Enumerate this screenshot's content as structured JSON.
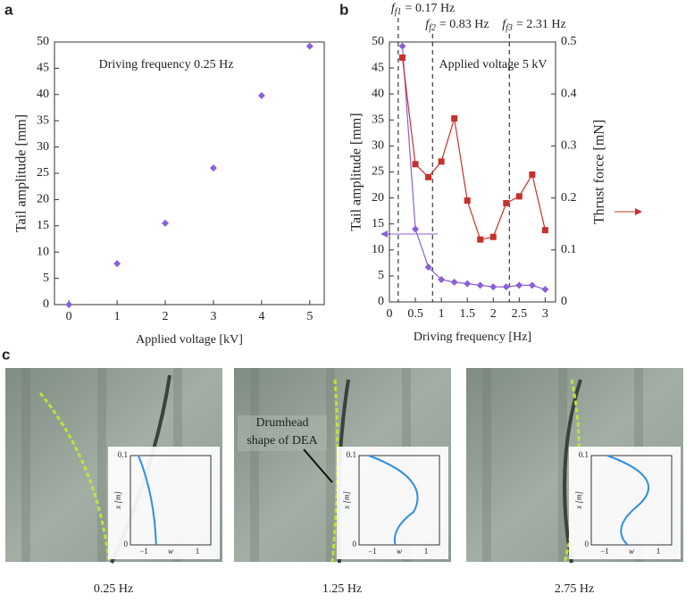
{
  "chart_data": [
    {
      "type": "scatter",
      "panel_label": "a",
      "annotation": "Driving frequency 0.25 Hz",
      "x_label": "Applied voltage [kV]",
      "y_label": "Tail amplitude [mm]",
      "x": [
        0,
        1,
        2,
        3,
        4,
        5
      ],
      "values": [
        0,
        7.8,
        15.5,
        26,
        39.8,
        49.2
      ],
      "color": "#8c5fd6",
      "xlim": [
        -0.3,
        5.3
      ],
      "xticks": [
        0,
        1,
        2,
        3,
        4,
        5
      ],
      "ylim": [
        0,
        50
      ],
      "yticks": [
        0,
        5,
        10,
        15,
        20,
        25,
        30,
        35,
        40,
        45,
        50
      ]
    },
    {
      "type": "line",
      "panel_label": "b",
      "annotation": "Applied voltage 5 kV",
      "x_label": "Driving frequency [Hz]",
      "y_label": "Tail amplitude [mm]",
      "y2_label": "Thrust force [mN]",
      "x": [
        0.25,
        0.5,
        0.75,
        1,
        1.25,
        1.5,
        1.75,
        2,
        2.25,
        2.5,
        2.75,
        3
      ],
      "series": [
        {
          "color": "#8c5fd6",
          "values": [
            49.2,
            14,
            6.7,
            4.3,
            3.8,
            3.5,
            3.2,
            2.9,
            2.9,
            3.2,
            3.2,
            2.4
          ]
        },
        {
          "color": "#c8302c",
          "axis": "y2",
          "values": [
            0.47,
            0.265,
            0.24,
            0.27,
            0.353,
            0.195,
            0.12,
            0.125,
            0.19,
            0.203,
            0.245,
            0.138
          ]
        }
      ],
      "xlim": [
        0,
        3.2
      ],
      "xticks": [
        0,
        0.5,
        1,
        1.5,
        2,
        2.5,
        3
      ],
      "ylim": [
        0,
        50
      ],
      "yticks": [
        0,
        5,
        10,
        15,
        20,
        25,
        30,
        35,
        40,
        45,
        50
      ],
      "y2lim": [
        0,
        0.5
      ],
      "y2ticks": [
        0,
        0.1,
        0.2,
        0.3,
        0.4,
        0.5
      ],
      "reference_lines": [
        {
          "x": 0.17,
          "symbol": "f",
          "subscript": "f1",
          "text": "= 0.17 Hz"
        },
        {
          "x": 0.83,
          "symbol": "f",
          "subscript": "f2",
          "text": "= 0.83 Hz"
        },
        {
          "x": 2.31,
          "symbol": "f",
          "subscript": "f3",
          "text": "= 2.31 Hz"
        }
      ]
    }
  ],
  "panel_c": {
    "label": "c",
    "annotation": [
      "Drumhead",
      "shape of DEA"
    ],
    "captions": [
      "0.25 Hz",
      "1.25 Hz",
      "2.75 Hz"
    ],
    "inset": {
      "yticks": [
        "0.1",
        "0"
      ],
      "xticks": [
        "−1",
        "1"
      ],
      "xlabel": "w",
      "ylabel": "x [m]"
    }
  }
}
